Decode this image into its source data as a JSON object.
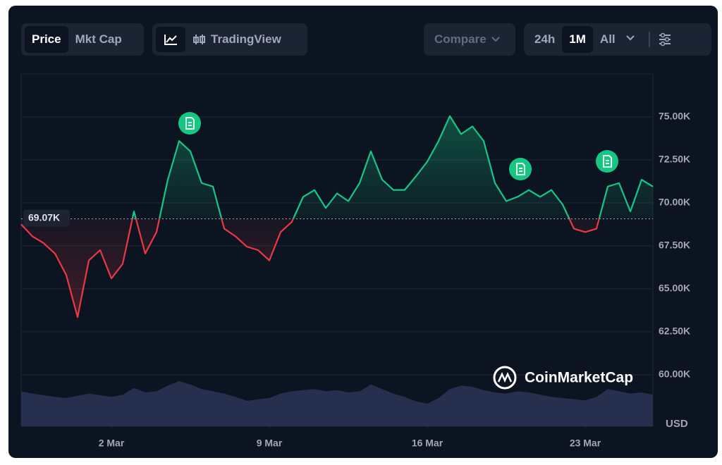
{
  "toolbar": {
    "modes": [
      "Price",
      "Mkt Cap"
    ],
    "view": "TradingView",
    "compare": "Compare",
    "ranges": [
      "24h",
      "1M",
      "All"
    ]
  },
  "watermark": "CoinMarketCap",
  "chart_data": {
    "type": "area",
    "currency": "USD",
    "x": [
      -2,
      -1.5,
      -1,
      -0.5,
      0,
      0.5,
      1,
      1.5,
      2,
      2.5,
      3,
      3.5,
      4,
      4.5,
      5,
      5.5,
      6,
      6.5,
      7,
      7.5,
      8,
      8.5,
      9,
      9.5,
      10,
      10.5,
      11,
      11.5,
      12,
      12.5,
      13,
      13.5,
      14,
      14.5,
      15,
      15.5,
      16,
      16.5,
      17,
      17.5,
      18,
      18.5,
      19,
      19.5,
      20,
      20.5,
      21,
      21.5,
      22,
      22.5,
      23,
      23.5,
      24,
      24.5,
      25,
      25.5,
      26
    ],
    "values": [
      68750,
      68050,
      67650,
      67050,
      65800,
      63350,
      66650,
      67250,
      65600,
      66450,
      69500,
      67050,
      68300,
      71350,
      73600,
      73000,
      71150,
      70950,
      68500,
      68050,
      67450,
      67250,
      66650,
      68300,
      68900,
      70350,
      70750,
      69700,
      70550,
      70100,
      71150,
      73000,
      71350,
      70750,
      70750,
      71550,
      72400,
      73600,
      75050,
      74000,
      74450,
      73600,
      71150,
      70100,
      70350,
      70750,
      70350,
      70750,
      69900,
      68500,
      68300,
      68500,
      70950,
      71150,
      69500,
      71350,
      70950
    ],
    "volume": [
      62,
      58,
      55,
      52,
      50,
      54,
      58,
      55,
      52,
      56,
      68,
      60,
      62,
      72,
      80,
      74,
      66,
      62,
      58,
      52,
      45,
      48,
      50,
      58,
      62,
      64,
      66,
      62,
      64,
      60,
      62,
      74,
      66,
      58,
      52,
      44,
      40,
      50,
      66,
      72,
      70,
      64,
      60,
      58,
      62,
      60,
      56,
      52,
      50,
      48,
      46,
      52,
      66,
      62,
      58,
      60,
      56
    ],
    "volume_lim": [
      0,
      100
    ],
    "color_up": "#16c784",
    "color_down": "#ea3943",
    "volume_color": "#2b3456",
    "reference_line": {
      "value": 69070,
      "label": "69.07K"
    },
    "xlim": [
      -2,
      26
    ],
    "xticks": [
      {
        "value": 2,
        "label": "2 Mar"
      },
      {
        "value": 9,
        "label": "9 Mar"
      },
      {
        "value": 16,
        "label": "16 Mar"
      },
      {
        "value": 23,
        "label": "23 Mar"
      }
    ],
    "ylim": [
      57000,
      77500
    ],
    "yticks": [
      {
        "value": 60000,
        "label": "60.00K"
      },
      {
        "value": 62500,
        "label": "62.50K"
      },
      {
        "value": 65000,
        "label": "65.00K"
      },
      {
        "value": 67500,
        "label": "67.50K"
      },
      {
        "value": 70000,
        "label": "70.00K"
      },
      {
        "value": 72500,
        "label": "72.50K"
      },
      {
        "value": 75000,
        "label": "75.00K"
      }
    ],
    "grid": true
  }
}
